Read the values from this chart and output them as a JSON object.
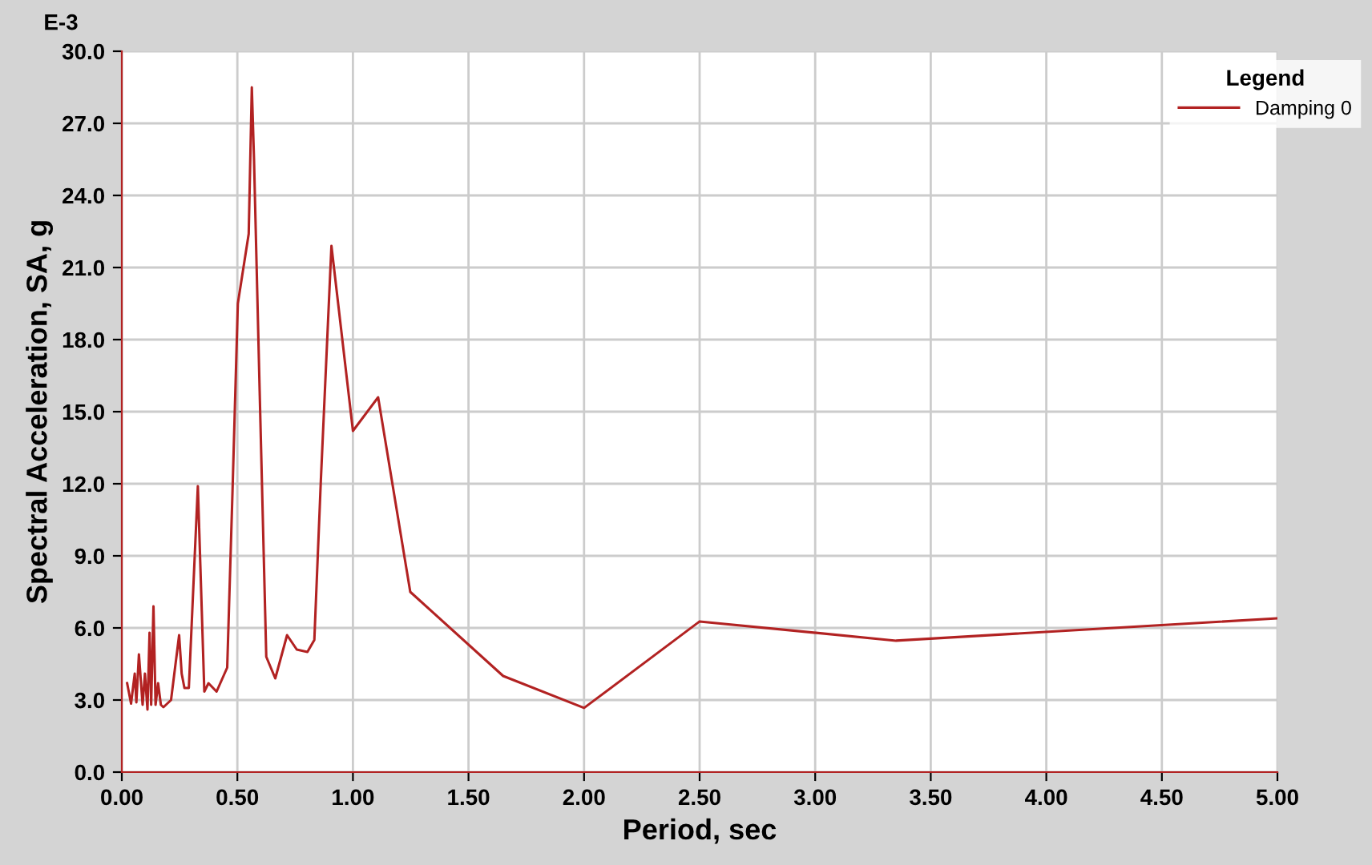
{
  "chart_data": {
    "type": "line",
    "xlabel": "Period, sec",
    "ylabel": "Spectral Acceleration, SA, g",
    "annotations": [
      "E-3"
    ],
    "legend_title": "Legend",
    "legend": "top right",
    "grid": true,
    "marker": "none",
    "line_style": "solid",
    "xlim": [
      0,
      5
    ],
    "ylim": [
      0,
      30
    ],
    "xticks": [
      {
        "value": 0,
        "label": "0.00"
      },
      {
        "value": 0.5,
        "label": "0.50"
      },
      {
        "value": 1,
        "label": "1.00"
      },
      {
        "value": 1.5,
        "label": "1.50"
      },
      {
        "value": 2,
        "label": "2.00"
      },
      {
        "value": 2.5,
        "label": "2.50"
      },
      {
        "value": 3,
        "label": "3.00"
      },
      {
        "value": 3.5,
        "label": "3.50"
      },
      {
        "value": 4,
        "label": "4.00"
      },
      {
        "value": 4.5,
        "label": "4.50"
      },
      {
        "value": 5,
        "label": "5.00"
      }
    ],
    "yticks": [
      {
        "value": 0,
        "label": "0.0"
      },
      {
        "value": 3,
        "label": "3.0"
      },
      {
        "value": 6,
        "label": "6.0"
      },
      {
        "value": 9,
        "label": "9.0"
      },
      {
        "value": 12,
        "label": "12.0"
      },
      {
        "value": 15,
        "label": "15.0"
      },
      {
        "value": 18,
        "label": "18.0"
      },
      {
        "value": 21,
        "label": "21.0"
      },
      {
        "value": 24,
        "label": "24.0"
      },
      {
        "value": 27,
        "label": "27.0"
      },
      {
        "value": 30,
        "label": "30.0"
      }
    ],
    "x": [
      0.023,
      0.04,
      0.056,
      0.063,
      0.074,
      0.09,
      0.1,
      0.111,
      0.12,
      0.127,
      0.137,
      0.146,
      0.157,
      0.169,
      0.18,
      0.213,
      0.248,
      0.259,
      0.271,
      0.29,
      0.329,
      0.357,
      0.375,
      0.41,
      0.456,
      0.479,
      0.502,
      0.549,
      0.5625,
      0.572,
      0.595,
      0.625,
      0.664,
      0.715,
      0.757,
      0.803,
      0.833,
      0.861,
      0.907,
      1.0,
      1.109,
      1.248,
      1.65,
      2.0,
      2.5,
      3.35,
      5.0
    ],
    "series": [
      {
        "name": "Damping 0",
        "color": "#b22222",
        "values": [
          3.7,
          2.85,
          4.1,
          2.9,
          4.9,
          2.8,
          4.1,
          2.6,
          5.8,
          2.8,
          6.9,
          2.8,
          3.7,
          2.8,
          2.7,
          3.0,
          5.7,
          4.1,
          3.5,
          3.5,
          11.9,
          3.35,
          3.7,
          3.35,
          4.35,
          11.7,
          19.5,
          22.4,
          28.5,
          25.5,
          16.4,
          4.8,
          3.9,
          5.7,
          5.1,
          5.0,
          5.5,
          12.1,
          21.9,
          14.2,
          15.6,
          7.5,
          4.0,
          2.67,
          6.27,
          5.47,
          6.4
        ]
      }
    ]
  }
}
